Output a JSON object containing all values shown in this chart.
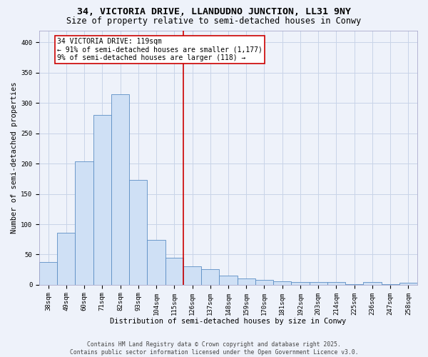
{
  "title": "34, VICTORIA DRIVE, LLANDUDNO JUNCTION, LL31 9NY",
  "subtitle": "Size of property relative to semi-detached houses in Conwy",
  "xlabel": "Distribution of semi-detached houses by size in Conwy",
  "ylabel": "Number of semi-detached properties",
  "categories": [
    "38sqm",
    "49sqm",
    "60sqm",
    "71sqm",
    "82sqm",
    "93sqm",
    "104sqm",
    "115sqm",
    "126sqm",
    "137sqm",
    "148sqm",
    "159sqm",
    "170sqm",
    "181sqm",
    "192sqm",
    "203sqm",
    "214sqm",
    "225sqm",
    "236sqm",
    "247sqm",
    "258sqm"
  ],
  "values": [
    38,
    86,
    204,
    280,
    315,
    173,
    74,
    45,
    30,
    26,
    15,
    11,
    8,
    6,
    4,
    5,
    4,
    1,
    4,
    1,
    3
  ],
  "bar_color": "#cfe0f5",
  "bar_edge_color": "#5b8ec4",
  "vline_color": "#cc0000",
  "annotation_text": "34 VICTORIA DRIVE: 119sqm\n← 91% of semi-detached houses are smaller (1,177)\n9% of semi-detached houses are larger (118) →",
  "annotation_box_edgecolor": "#cc0000",
  "footer1": "Contains HM Land Registry data © Crown copyright and database right 2025.",
  "footer2": "Contains public sector information licensed under the Open Government Licence v3.0.",
  "ylim": [
    0,
    420
  ],
  "yticks": [
    0,
    50,
    100,
    150,
    200,
    250,
    300,
    350,
    400
  ],
  "grid_color": "#c8d4e8",
  "background_color": "#eef2fa",
  "title_fontsize": 9.5,
  "subtitle_fontsize": 8.5,
  "axis_label_fontsize": 7.5,
  "tick_fontsize": 6.5,
  "annotation_fontsize": 7.0,
  "footer_fontsize": 5.8
}
